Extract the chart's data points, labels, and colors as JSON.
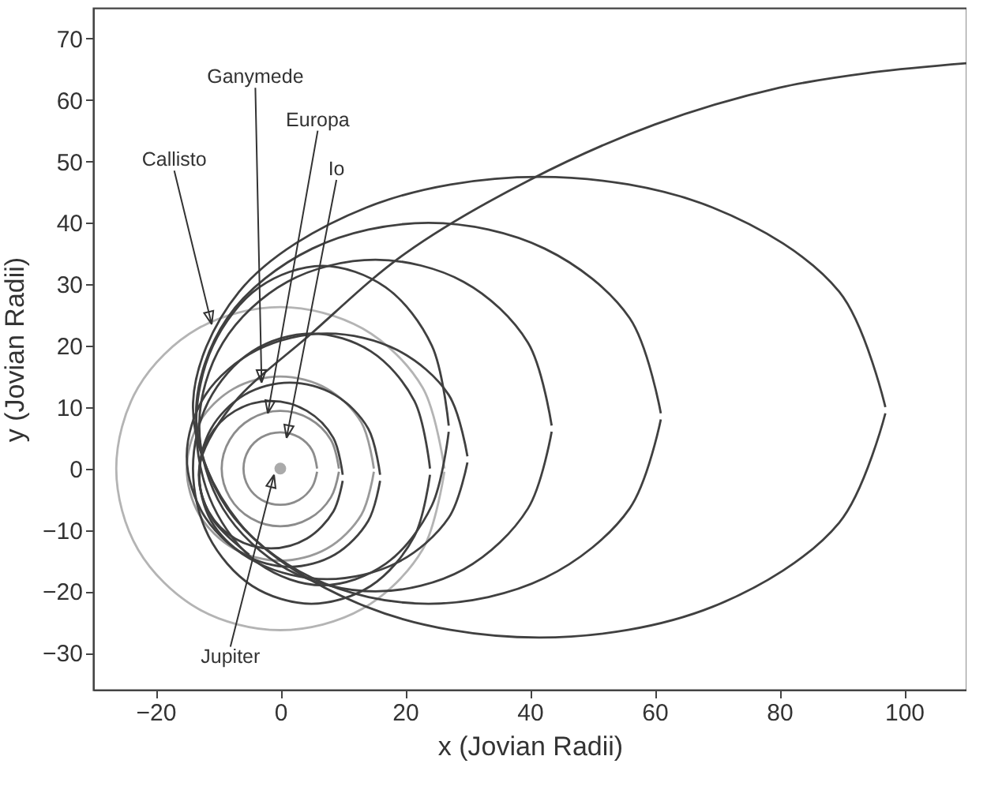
{
  "chart_data": {
    "type": "line",
    "xlabel": "x (Jovian Radii)",
    "ylabel": "y (Jovian Radii)",
    "xlim": [
      -30,
      110
    ],
    "ylim": [
      -36,
      75
    ],
    "xticks": [
      -20,
      0,
      20,
      40,
      60,
      80,
      100
    ],
    "yticks": [
      -30,
      -20,
      -10,
      0,
      10,
      20,
      30,
      40,
      50,
      60,
      70
    ],
    "annotations": [
      {
        "text": "Callisto",
        "x": -11,
        "y": 23.5
      },
      {
        "text": "Ganymede",
        "x": -3,
        "y": 14
      },
      {
        "text": "Europa",
        "x": -2,
        "y": 9
      },
      {
        "text": "Io",
        "x": 1,
        "y": 5
      },
      {
        "text": "Jupiter",
        "x": -1,
        "y": -1
      }
    ],
    "series": [
      {
        "color": "#b4b4b4",
        "x": [
          26.3,
          22.8,
          13.2,
          0,
          -13.2,
          -22.8,
          -26.3,
          -22.8,
          -13.2,
          0,
          13.2,
          22.8,
          26.3
        ],
        "values": [
          0,
          13.2,
          22.8,
          26.3,
          22.8,
          13.2,
          0,
          -13.2,
          -22.8,
          -26.3,
          -22.8,
          -13.2,
          -0.5
        ]
      },
      {
        "color": "#9a9a9a",
        "x": [
          15,
          13,
          7.5,
          0,
          -7.5,
          -13,
          -15,
          -13,
          -7.5,
          0,
          7.5,
          13,
          15
        ],
        "values": [
          0,
          7.5,
          13,
          15,
          13,
          7.5,
          0,
          -7.5,
          -13,
          -15,
          -13,
          -7.5,
          -0.5
        ]
      },
      {
        "color": "#8c8c8c",
        "x": [
          9.4,
          8.1,
          4.7,
          0,
          -4.7,
          -8.1,
          -9.4,
          -8.1,
          -4.7,
          0,
          4.7,
          8.1,
          9.4
        ],
        "values": [
          0,
          4.7,
          8.1,
          9.4,
          8.1,
          4.7,
          0,
          -4.7,
          -8.1,
          -9.4,
          -8.1,
          -4.7,
          -0.5
        ]
      },
      {
        "color": "#8c8c8c",
        "x": [
          5.9,
          5.1,
          3,
          0,
          -3,
          -5.1,
          -5.9,
          -5.1,
          -3,
          0,
          3,
          5.1,
          5.9
        ],
        "values": [
          0,
          3,
          5.1,
          5.9,
          5.1,
          3,
          0,
          -3,
          -5.1,
          -5.9,
          -5.1,
          -3,
          -0.5
        ]
      },
      {
        "color": "#404040",
        "x": [
          110,
          95,
          80,
          60,
          40,
          20,
          5,
          -8,
          -13,
          -11,
          -5
        ],
        "values": [
          66,
          64.5,
          62,
          56,
          47,
          35,
          22,
          10,
          0,
          -8,
          -14
        ]
      },
      {
        "color": "#404040",
        "x": [
          97,
          89.6,
          69.3,
          41.5,
          13.8,
          -6.6,
          -14,
          -6.6,
          13.8,
          41.5,
          69.3,
          89.6,
          97
        ],
        "values": [
          10,
          28.8,
          42.5,
          47.5,
          42.5,
          28.8,
          10,
          -8.8,
          -22.5,
          -27.5,
          -22.5,
          -8.8,
          9
        ]
      },
      {
        "color": "#404040",
        "x": [
          61,
          56,
          42.4,
          23.75,
          5.1,
          -8.5,
          -13.5,
          -8.5,
          5.1,
          23.75,
          42.4,
          56,
          61
        ],
        "values": [
          9,
          24.5,
          35.8,
          40,
          35.8,
          24.5,
          9,
          -6.5,
          -17.8,
          -22,
          -17.8,
          -6.5,
          8
        ]
      },
      {
        "color": "#404040",
        "x": [
          43.5,
          39.7,
          29.4,
          15.25,
          1.1,
          -9.2,
          -13,
          -9.2,
          1.1,
          15.25,
          29.4,
          39.7,
          43.5
        ],
        "values": [
          7,
          20.5,
          30.4,
          34,
          30.4,
          20.5,
          7,
          -6.5,
          -16.4,
          -20,
          -16.4,
          -6.5,
          6
        ]
      },
      {
        "color": "#404040",
        "x": [
          27,
          24.3,
          16.9,
          6.75,
          -3.4,
          -10.8,
          -13.5,
          -10.8,
          -3.4,
          6.75,
          16.9,
          24.3,
          27
        ],
        "values": [
          7,
          20,
          29.5,
          33,
          29.5,
          20,
          7,
          -6,
          -15.5,
          -19,
          -15.5,
          -6,
          6
        ]
      },
      {
        "color": "#404040",
        "x": [
          30,
          27,
          18.75,
          7.5,
          -3.75,
          -12,
          -15,
          -12,
          -3.75,
          7.5,
          18.75,
          27,
          30
        ],
        "values": [
          2,
          12,
          19.3,
          22,
          19.3,
          12,
          2,
          -8,
          -15.3,
          -18,
          -15.3,
          -8,
          1
        ]
      },
      {
        "color": "#404040",
        "x": [
          24,
          21.5,
          14.5,
          5,
          -4.5,
          -11.5,
          -14,
          -11.5,
          -4.5,
          5,
          14.5,
          21.5,
          24
        ],
        "values": [
          0,
          11,
          19.1,
          22,
          19.1,
          11,
          0,
          -11,
          -19.1,
          -22,
          -19.1,
          -11,
          -1
        ]
      },
      {
        "color": "#404040",
        "x": [
          16,
          14.1,
          8.75,
          1.5,
          -5.75,
          -11.1,
          -13,
          -11.1,
          -5.75,
          1.5,
          8.75,
          14.1,
          16
        ],
        "values": [
          -1,
          6.5,
          12,
          14,
          12,
          6.5,
          -1,
          -8.5,
          -14,
          -16,
          -14,
          -8.5,
          -2
        ]
      },
      {
        "color": "#404040",
        "x": [
          10,
          8.5,
          4.25,
          -1.5,
          -7.25,
          -11.5,
          -13,
          -11.5,
          -7.25,
          -1.5,
          4.25,
          8.5,
          10
        ],
        "values": [
          -1,
          5,
          9.4,
          11,
          9.4,
          5,
          -1,
          -7,
          -11.4,
          -13,
          -11.4,
          -7,
          -2
        ]
      },
      {
        "type": "scatter",
        "color": "#aaaaaa",
        "x": [
          0
        ],
        "values": [
          0
        ]
      }
    ]
  }
}
